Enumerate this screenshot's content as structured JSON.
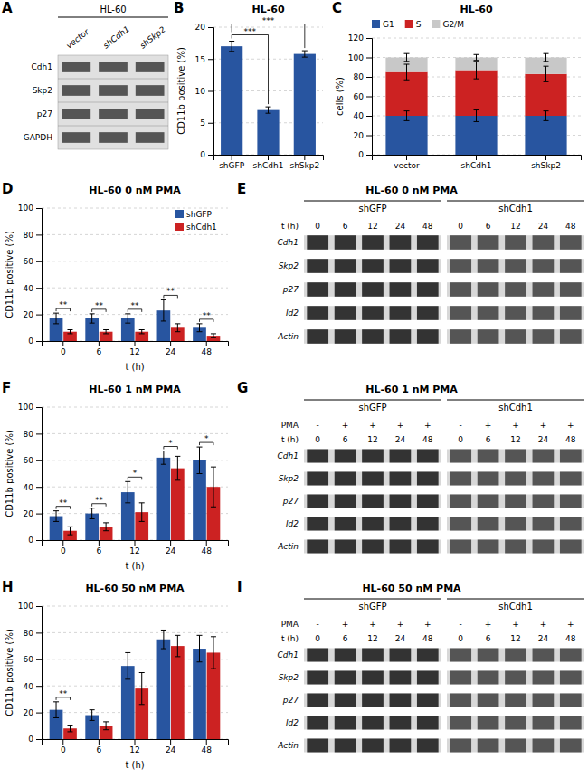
{
  "chart_data": [
    {
      "type": "blot",
      "annotations": [
        "A"
      ],
      "title": "HL-60",
      "categories": [
        "vector",
        "shCdh1",
        "shSkp2"
      ],
      "rows": [
        "Cdh1",
        "Skp2",
        "p27",
        "GAPDH"
      ]
    },
    {
      "type": "bar",
      "annotations": [
        "B"
      ],
      "title": "HL-60",
      "ylabel": "CD11b positive (%)",
      "categories": [
        "shGFP",
        "shCdh1",
        "shSkp2"
      ],
      "values": [
        17.0,
        7.0,
        15.8
      ],
      "errors": [
        0.8,
        0.5,
        0.5
      ],
      "color": "#2855a0",
      "ylim": [
        0,
        20
      ],
      "yticks": [
        0,
        5,
        10,
        15,
        20
      ],
      "grid": true,
      "significance": [
        {
          "label": "***",
          "categories": [
            "shGFP",
            "shCdh1"
          ]
        },
        {
          "label": "***",
          "categories": [
            "shGFP",
            "shSkp2"
          ]
        }
      ]
    },
    {
      "type": "bar",
      "stacked": true,
      "annotations": [
        "C"
      ],
      "title": "HL-60",
      "ylabel": "cells (%)",
      "categories": [
        "vector",
        "shCdh1",
        "shSkp2"
      ],
      "series": [
        {
          "name": "G1",
          "color": "#2855a0",
          "values": [
            40,
            40,
            40
          ],
          "errors": [
            5,
            6,
            5
          ]
        },
        {
          "name": "S",
          "color": "#cc2222",
          "values": [
            45,
            47,
            43
          ],
          "errors": [
            8,
            9,
            8
          ]
        },
        {
          "name": "G2/M",
          "color": "#c8c8c8",
          "values": [
            15,
            13,
            17
          ],
          "errors": [
            4,
            3,
            4
          ]
        }
      ],
      "ylim": [
        0,
        120
      ],
      "yticks": [
        0,
        20,
        40,
        60,
        80,
        100,
        120
      ],
      "grid": true,
      "legend": "top"
    },
    {
      "type": "bar",
      "annotations": [
        "D"
      ],
      "title": "HL-60 0 nM PMA",
      "xlabel": "t (h)",
      "ylabel": "CD11b positive (%)",
      "categories": [
        "0",
        "6",
        "12",
        "24",
        "48"
      ],
      "series": [
        {
          "name": "shGFP",
          "color": "#2855a0",
          "values": [
            17.0,
            17.0,
            17.0,
            23.0,
            10.0
          ],
          "errors": [
            4.0,
            3.5,
            3.5,
            8.0,
            3.0
          ]
        },
        {
          "name": "shCdh1",
          "color": "#cc2222",
          "values": [
            7.0,
            7.0,
            7.0,
            10.0,
            4.0
          ],
          "errors": [
            1.5,
            1.5,
            1.5,
            3.0,
            1.5
          ]
        }
      ],
      "ylim": [
        0,
        100
      ],
      "yticks": [
        0,
        20,
        40,
        60,
        80,
        100
      ],
      "grid": true,
      "legend": "upper right",
      "significance": [
        "**",
        "**",
        "**",
        "**",
        "**"
      ]
    },
    {
      "type": "blot",
      "annotations": [
        "E"
      ],
      "title": "HL-60 0 nM PMA",
      "series": [
        {
          "name": "shGFP"
        },
        {
          "name": "shCdh1"
        }
      ],
      "xlabel": "t (h)",
      "categories": [
        "0",
        "6",
        "12",
        "24",
        "48"
      ],
      "rows": [
        "Cdh1",
        "Skp2",
        "p27",
        "Id2",
        "Actin"
      ]
    },
    {
      "type": "bar",
      "annotations": [
        "F"
      ],
      "title": "HL-60 1 nM PMA",
      "xlabel": "t (h)",
      "ylabel": "CD11b positive (%)",
      "categories": [
        "0",
        "6",
        "12",
        "24",
        "48"
      ],
      "series": [
        {
          "name": "shGFP",
          "color": "#2855a0",
          "values": [
            18.0,
            20.0,
            36.0,
            62.0,
            60.0
          ],
          "errors": [
            4.0,
            4.0,
            8.0,
            5.0,
            10.0
          ]
        },
        {
          "name": "shCdh1",
          "color": "#cc2222",
          "values": [
            7.0,
            10.0,
            21.0,
            54.0,
            40.0
          ],
          "errors": [
            3.0,
            3.0,
            7.0,
            9.0,
            15.0
          ]
        }
      ],
      "ylim": [
        0,
        100
      ],
      "yticks": [
        0,
        20,
        40,
        60,
        80,
        100
      ],
      "grid": true,
      "significance": [
        "**",
        "**",
        "*",
        "*",
        "*"
      ]
    },
    {
      "type": "blot",
      "annotations": [
        "G"
      ],
      "title": "HL-60 1 nM PMA",
      "series": [
        {
          "name": "shGFP"
        },
        {
          "name": "shCdh1"
        }
      ],
      "pma": {
        "label": "PMA",
        "values": [
          "-",
          "+",
          "+",
          "+",
          "+"
        ]
      },
      "xlabel": "t (h)",
      "categories": [
        "0",
        "6",
        "12",
        "24",
        "48"
      ],
      "rows": [
        "Cdh1",
        "Skp2",
        "p27",
        "Id2",
        "Actin"
      ]
    },
    {
      "type": "bar",
      "annotations": [
        "H"
      ],
      "title": "HL-60 50 nM PMA",
      "xlabel": "t (h)",
      "ylabel": "CD11b positive (%)",
      "categories": [
        "0",
        "6",
        "12",
        "24",
        "48"
      ],
      "series": [
        {
          "name": "shGFP",
          "color": "#2855a0",
          "values": [
            22.0,
            18.0,
            55.0,
            75.0,
            68.0
          ],
          "errors": [
            6.0,
            4.0,
            10.0,
            7.0,
            10.0
          ]
        },
        {
          "name": "shCdh1",
          "color": "#cc2222",
          "values": [
            8.0,
            10.0,
            38.0,
            70.0,
            65.0
          ],
          "errors": [
            2.5,
            3.0,
            12.0,
            8.0,
            12.0
          ]
        }
      ],
      "ylim": [
        0,
        100
      ],
      "yticks": [
        0,
        20,
        40,
        60,
        80,
        100
      ],
      "grid": true,
      "significance": [
        "**",
        null,
        null,
        null,
        null
      ]
    },
    {
      "type": "blot",
      "annotations": [
        "I"
      ],
      "title": "HL-60 50 nM PMA",
      "series": [
        {
          "name": "shGFP"
        },
        {
          "name": "shCdh1"
        }
      ],
      "pma": {
        "label": "PMA",
        "values": [
          "-",
          "+",
          "+",
          "+",
          "+"
        ]
      },
      "xlabel": "t (h)",
      "categories": [
        "0",
        "6",
        "12",
        "24",
        "48"
      ],
      "rows": [
        "Cdh1",
        "Skp2",
        "p27",
        "Id2",
        "Actin"
      ]
    }
  ]
}
